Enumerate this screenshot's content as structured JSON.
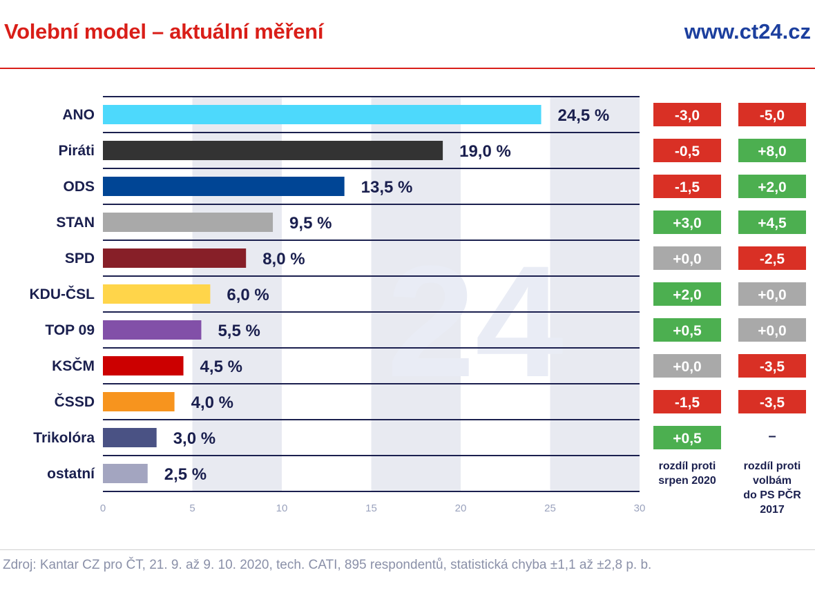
{
  "header": {
    "title": "Volební model – aktuální měření",
    "site": "www.ct24.cz"
  },
  "footer": {
    "source": "Zdroj: Kantar CZ pro ČT, 21. 9. až 9. 10. 2020, tech. CATI, 895 respondentů, statistická chyba ±1,1 až ±2,8 p. b."
  },
  "watermark": "24",
  "columns": {
    "change_2020": "rozdíl proti srpen 2020",
    "change_2020_lines": [
      "rozdíl proti",
      "srpen 2020"
    ],
    "change_2017": "rozdíl proti volbám do PS PČR 2017",
    "change_2017_lines": [
      "rozdíl proti",
      "volbám",
      "do PS PČR",
      "2017"
    ]
  },
  "colors": {
    "positive": "#4caf50",
    "negative": "#d93025",
    "neutral": "#a9a9a9",
    "axis_line": "#1a1f4e",
    "band": "#e8eaf1"
  },
  "chart_data": {
    "type": "bar",
    "orientation": "horizontal",
    "title": "Volební model – aktuální měření",
    "xlim": [
      0,
      30
    ],
    "xticks": [
      0,
      5,
      10,
      15,
      20,
      25,
      30
    ],
    "categories": [
      "ANO",
      "Piráti",
      "ODS",
      "STAN",
      "SPD",
      "KDU-ČSL",
      "TOP 09",
      "KSČM",
      "ČSSD",
      "Trikolóra",
      "ostatní"
    ],
    "values": [
      24.5,
      19.0,
      13.5,
      9.5,
      8.0,
      6.0,
      5.5,
      4.5,
      4.0,
      3.0,
      2.5
    ],
    "value_labels": [
      "24,5 %",
      "19,0 %",
      "13,5 %",
      "9,5 %",
      "8,0 %",
      "6,0 %",
      "5,5 %",
      "4,5 %",
      "4,0 %",
      "3,0 %",
      "2,5 %"
    ],
    "bar_colors": [
      "#4dd9fc",
      "#333333",
      "#004595",
      "#a9a9a9",
      "#871f28",
      "#ffd54a",
      "#8250a8",
      "#cc0000",
      "#f7941e",
      "#4a5284",
      "#a3a5c0"
    ],
    "change_vs_2020": [
      "-3,0",
      "-0,5",
      "-1,5",
      "+3,0",
      "+0,0",
      "+2,0",
      "+0,5",
      "+0,0",
      "-1,5",
      "+0,5",
      null
    ],
    "change_vs_2020_kind": [
      "neg",
      "neg",
      "neg",
      "pos",
      "neu",
      "pos",
      "pos",
      "neu",
      "neg",
      "pos",
      null
    ],
    "change_vs_2017": [
      "-5,0",
      "+8,0",
      "+2,0",
      "+4,5",
      "-2,5",
      "+0,0",
      "+0,0",
      "-3,5",
      "-3,5",
      "–",
      null
    ],
    "change_vs_2017_kind": [
      "neg",
      "pos",
      "pos",
      "pos",
      "neg",
      "neu",
      "neu",
      "neg",
      "neg",
      "none",
      null
    ]
  }
}
